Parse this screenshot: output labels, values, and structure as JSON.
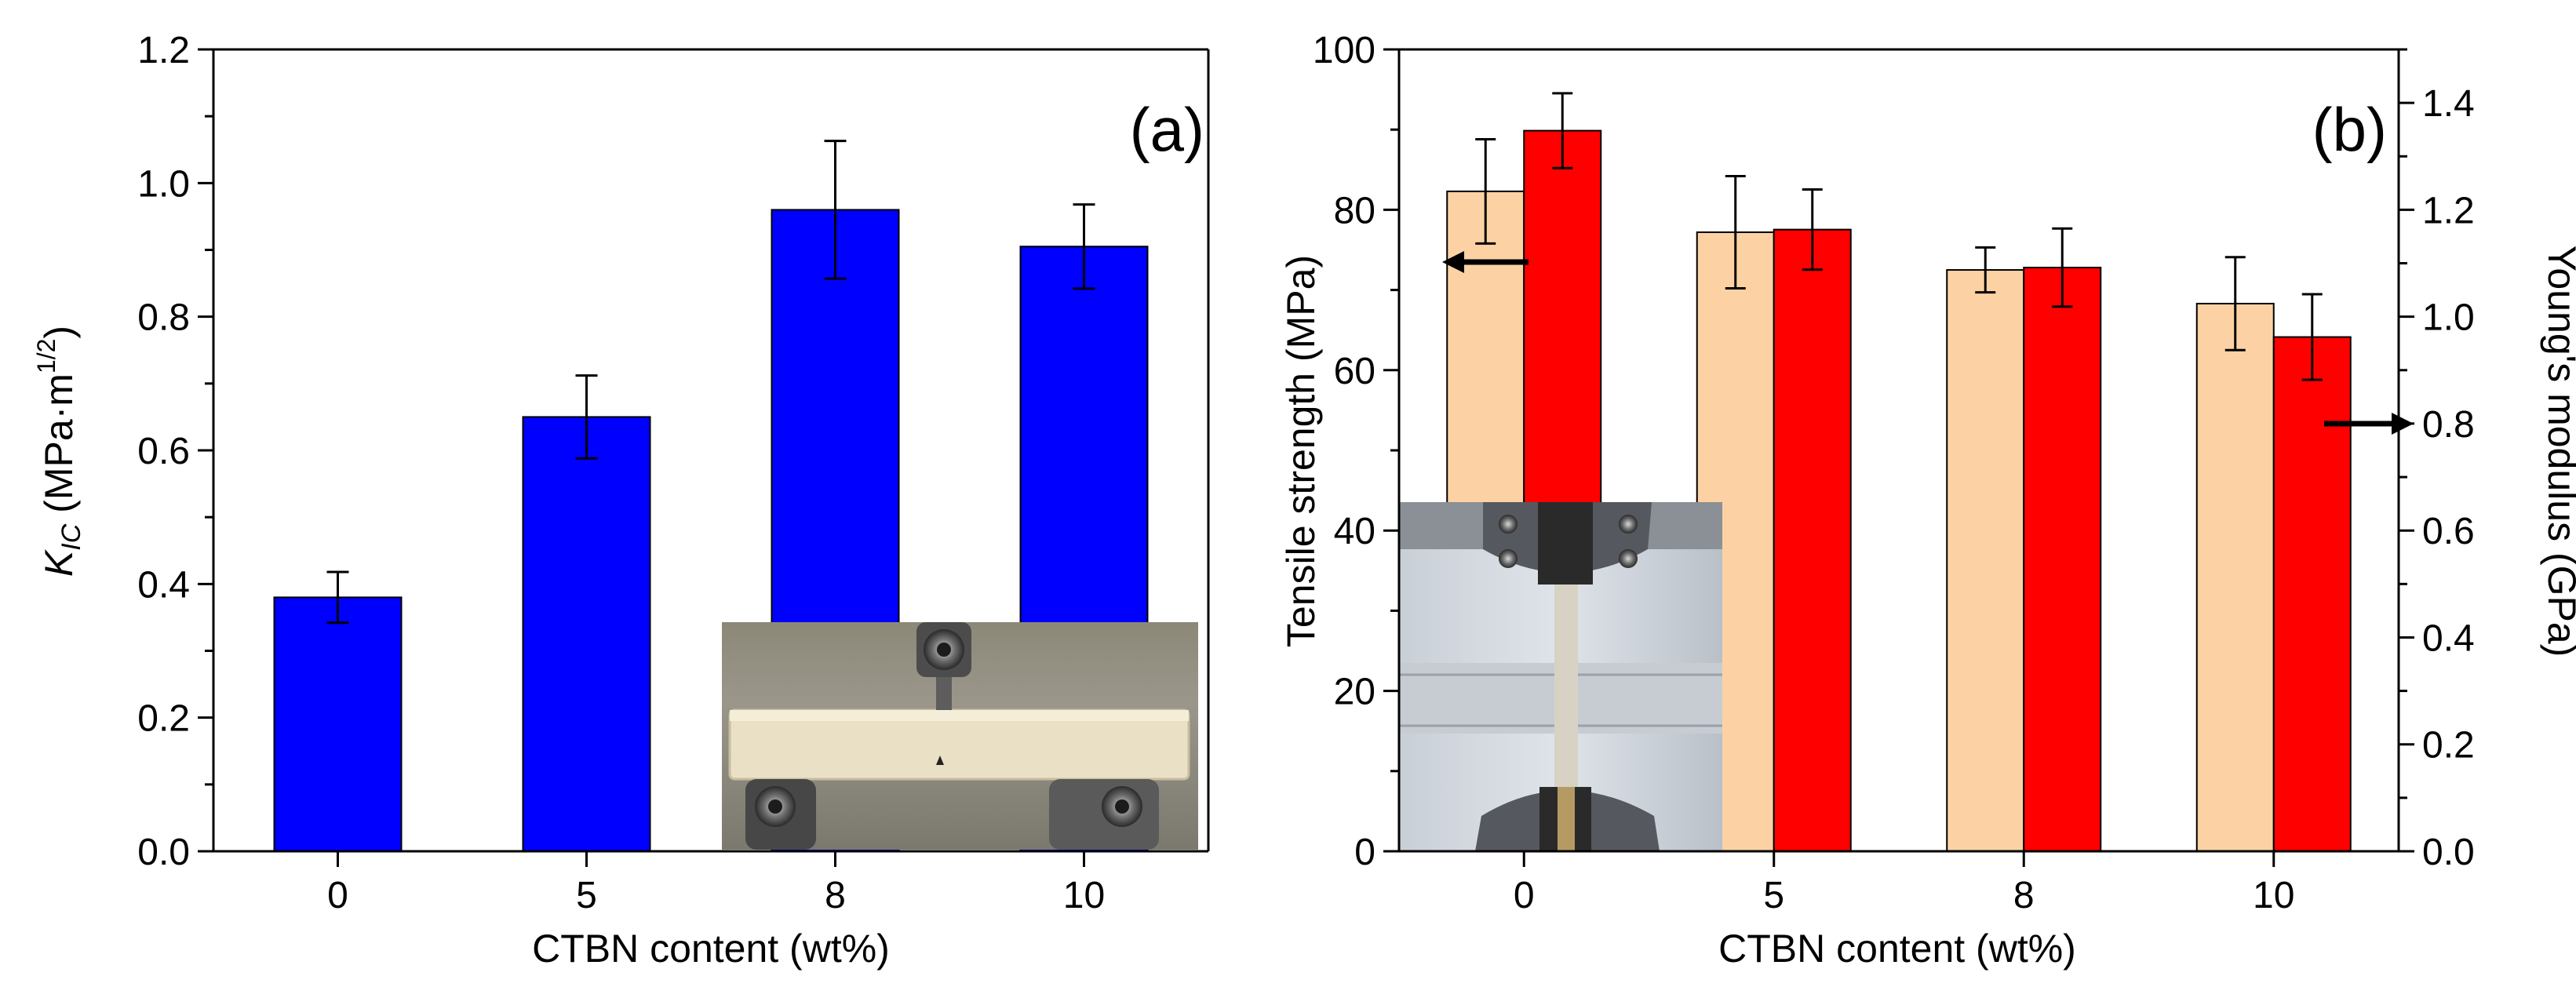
{
  "chart_data": [
    {
      "type": "bar",
      "panel_label": "(a)",
      "categories": [
        "0",
        "5",
        "8",
        "10"
      ],
      "series": [
        {
          "values": [
            0.38,
            0.65,
            0.96,
            0.905
          ],
          "errors": [
            0.038,
            0.062,
            0.103,
            0.063
          ],
          "color": "#0000ff"
        }
      ],
      "xlabel": "CTBN content (wt%)",
      "ylabel": {
        "symbol": "K",
        "subscript": "IC",
        "units": " (MPa·m",
        "exponent": "1/2",
        "close": ")"
      },
      "ylim": [
        0,
        1.2
      ],
      "yticks": [
        "0.0",
        "0.2",
        "0.4",
        "0.6",
        "0.8",
        "1.0",
        "1.2"
      ],
      "grid": false,
      "inset": "photograph of three-point bending test specimen"
    },
    {
      "type": "bar",
      "panel_label": "(b)",
      "categories": [
        "0",
        "5",
        "8",
        "10"
      ],
      "series": [
        {
          "values": [
            82.3,
            77.2,
            72.5,
            68.3
          ],
          "errors": [
            6.5,
            7.0,
            2.8,
            5.8
          ],
          "axis": "left",
          "color": "#fcd2a4"
        },
        {
          "values": [
            1.348,
            1.163,
            1.092,
            0.962
          ],
          "errors": [
            0.07,
            0.075,
            0.073,
            0.08
          ],
          "axis": "right",
          "color": "#ff0000"
        }
      ],
      "xlabel": "CTBN content (wt%)",
      "ylabel_left": "Tensile strength (MPa)",
      "ylabel_right": "Young's modulus (GPa)",
      "ylim_left": [
        0,
        100
      ],
      "ylim_right": [
        0,
        1.5
      ],
      "yticks_left": [
        "0",
        "20",
        "40",
        "60",
        "80",
        "100"
      ],
      "yticks_right": [
        "0.0",
        "0.2",
        "0.4",
        "0.6",
        "0.8",
        "1.0",
        "1.2",
        "1.4"
      ],
      "grid": false,
      "inset": "photograph of tensile test specimen in grips"
    }
  ]
}
